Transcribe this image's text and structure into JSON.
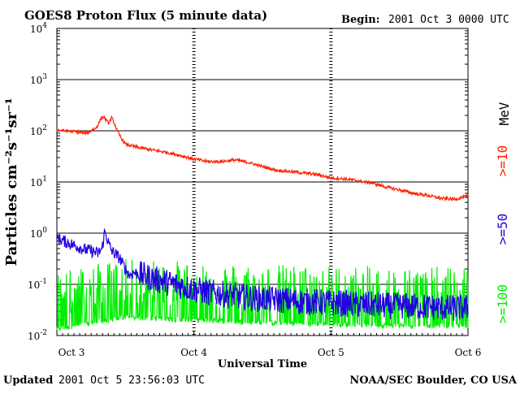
{
  "header": {
    "title": "GOES8 Proton Flux (5 minute data)",
    "begin_label": "Begin:",
    "begin_value": "2001 Oct 3 0000 UTC"
  },
  "footer": {
    "updated_label": "Updated",
    "updated_value": "2001 Oct  5 23:56:03 UTC",
    "credit": "NOAA/SEC Boulder, CO USA"
  },
  "chart_data": {
    "type": "line",
    "title": "GOES8 Proton Flux (5 minute data)",
    "xlabel": "Universal Time",
    "ylabel": "Particles cm⁻²s⁻¹sr⁻¹",
    "yscale": "log",
    "ylim": [
      0.01,
      10000
    ],
    "xlim": [
      0,
      3
    ],
    "x_unit": "days since 2001 Oct 3 0000 UTC",
    "grid": "horizontal at each decade; dashed vertical markers at day boundaries",
    "y_ticks": [
      {
        "value": 0.01,
        "base": "10",
        "exp": "-2"
      },
      {
        "value": 0.1,
        "base": "10",
        "exp": "-1"
      },
      {
        "value": 1,
        "base": "10",
        "exp": "0"
      },
      {
        "value": 10,
        "base": "10",
        "exp": "1"
      },
      {
        "value": 100,
        "base": "10",
        "exp": "2"
      },
      {
        "value": 1000,
        "base": "10",
        "exp": "3"
      },
      {
        "value": 10000,
        "base": "10",
        "exp": "4"
      }
    ],
    "x_ticks": [
      {
        "value": 0,
        "label": "Oct 3"
      },
      {
        "value": 1,
        "label": "Oct 4"
      },
      {
        "value": 2,
        "label": "Oct 5"
      },
      {
        "value": 3,
        "label": "Oct 6"
      }
    ],
    "legend_unit": "MeV",
    "series": [
      {
        "name": ">=10",
        "color": "#ff2000",
        "x": [
          0,
          0.05,
          0.1,
          0.15,
          0.2,
          0.23,
          0.26,
          0.28,
          0.3,
          0.32,
          0.34,
          0.36,
          0.38,
          0.4,
          0.42,
          0.44,
          0.46,
          0.48,
          0.5,
          0.55,
          0.6,
          0.7,
          0.8,
          0.9,
          1.0,
          1.1,
          1.2,
          1.3,
          1.4,
          1.5,
          1.6,
          1.7,
          1.8,
          1.9,
          2.0,
          2.1,
          2.2,
          2.3,
          2.4,
          2.5,
          2.6,
          2.7,
          2.8,
          2.9,
          3.0
        ],
        "values": [
          105,
          100,
          98,
          95,
          90,
          92,
          105,
          110,
          130,
          170,
          190,
          160,
          140,
          180,
          140,
          100,
          80,
          65,
          55,
          50,
          47,
          42,
          38,
          33,
          28,
          25,
          25,
          27,
          24,
          20,
          17,
          16,
          15,
          14,
          12,
          11.5,
          10.5,
          9.5,
          8,
          7,
          6,
          5.5,
          4.8,
          4.6,
          5.3
        ]
      },
      {
        "name": ">=50",
        "color": "#2000e0",
        "x": [
          0,
          0.05,
          0.1,
          0.15,
          0.2,
          0.25,
          0.28,
          0.3,
          0.33,
          0.35,
          0.38,
          0.4,
          0.43,
          0.46,
          0.48,
          0.5,
          0.53,
          0.56,
          0.6,
          0.7,
          0.8,
          0.9,
          1.0,
          1.1,
          1.2,
          1.3,
          1.4,
          1.5,
          1.6,
          1.7,
          1.8,
          1.9,
          2.0,
          2.1,
          2.2,
          2.3,
          2.4,
          2.5,
          2.6,
          2.7,
          2.8,
          2.9,
          3.0
        ],
        "values": [
          0.8,
          0.7,
          0.62,
          0.55,
          0.48,
          0.45,
          0.42,
          0.4,
          0.5,
          1.1,
          0.6,
          0.45,
          0.38,
          0.32,
          0.25,
          0.2,
          0.15,
          0.17,
          0.16,
          0.13,
          0.11,
          0.095,
          0.08,
          0.07,
          0.065,
          0.06,
          0.055,
          0.052,
          0.05,
          0.048,
          0.046,
          0.045,
          0.044,
          0.042,
          0.04,
          0.04,
          0.038,
          0.038,
          0.037,
          0.036,
          0.035,
          0.034,
          0.035
        ]
      },
      {
        "name": ">=100",
        "color": "#00ee00",
        "x": [
          0,
          0.5,
          1.0,
          1.5,
          2.0,
          2.5,
          3.0
        ],
        "values": [
          0.012,
          0.02,
          0.018,
          0.016,
          0.015,
          0.014,
          0.014
        ]
      }
    ]
  }
}
